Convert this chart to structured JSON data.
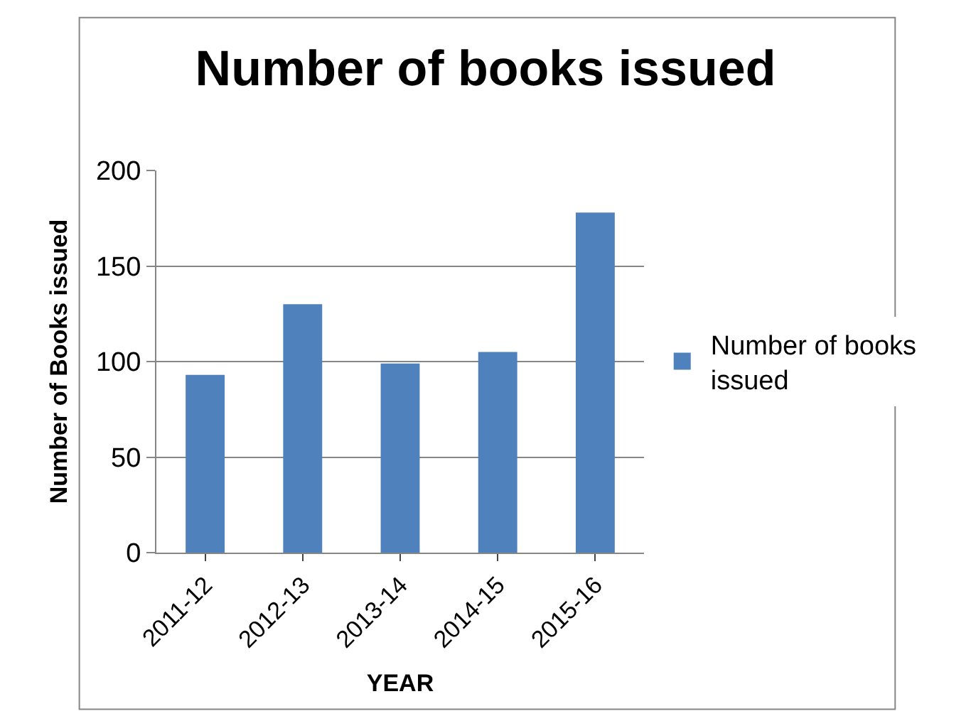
{
  "chart_data": {
    "type": "bar",
    "title": "Number of books issued",
    "xlabel": "YEAR",
    "ylabel": "Number of Books issued",
    "categories": [
      "2011-12",
      "2012-13",
      "2013-14",
      "2014-15",
      "2015-16"
    ],
    "series": [
      {
        "name": "Number of books issued",
        "color": "#4f81bd",
        "values": [
          93,
          130,
          99,
          105,
          178
        ]
      }
    ],
    "ylim": [
      0,
      200
    ],
    "yticks": [
      0,
      50,
      100,
      150,
      200
    ],
    "grid": "y",
    "legend": "right"
  }
}
